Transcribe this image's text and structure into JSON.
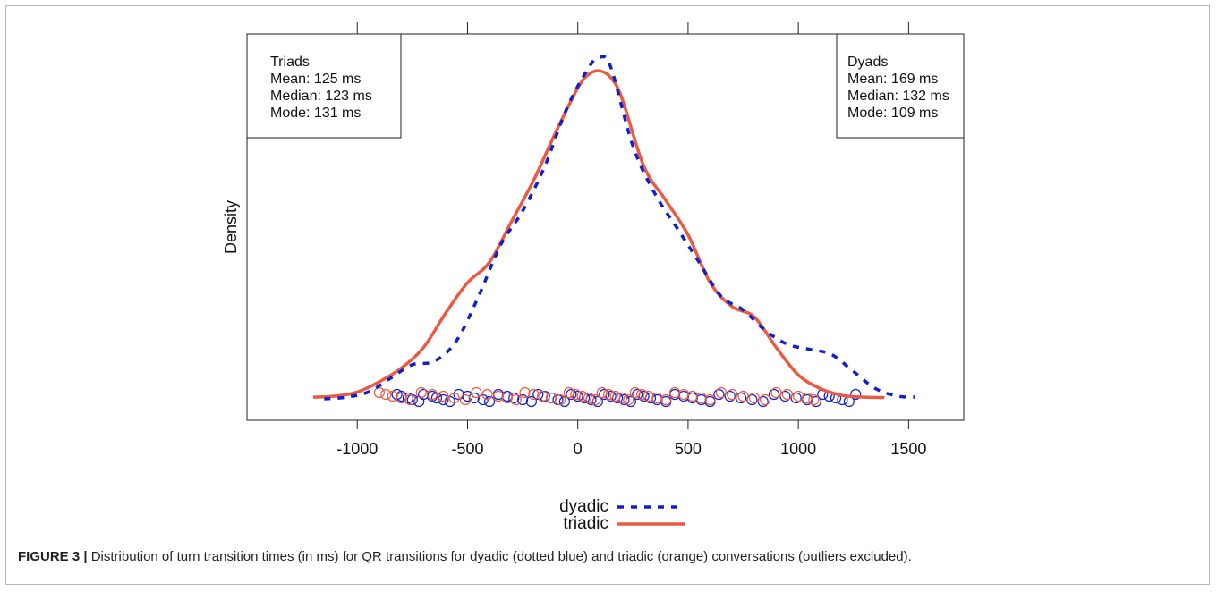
{
  "figure": {
    "label": "FIGURE 3 |",
    "caption": "Distribution of turn transition times (in ms) for QR transitions for dyadic (dotted blue) and triadic (orange) conversations (outliers excluded)."
  },
  "stats": {
    "triads": {
      "title": "Triads",
      "mean": "Mean: 125 ms",
      "median": "Median: 123 ms",
      "mode": "Mode:  131 ms"
    },
    "dyads": {
      "title": "Dyads",
      "mean": "Mean: 169 ms",
      "median": "Median: 132 ms",
      "mode": "Mode:  109 ms"
    }
  },
  "chart_data": {
    "type": "line",
    "title": "",
    "xlabel": "",
    "ylabel": "Density",
    "xlim": [
      -1500,
      1750
    ],
    "ylim": [
      0,
      1.0
    ],
    "xticks": [
      -1000,
      -500,
      0,
      500,
      1000,
      1500
    ],
    "xtick_labels": [
      "-1000",
      "-500",
      "0",
      "500",
      "1000",
      "1500"
    ],
    "top_ticks": [
      -1000,
      -500,
      0,
      500,
      1000,
      1500
    ],
    "grid": false,
    "legend_position": "bottom-center",
    "series": [
      {
        "name": "dyadic",
        "color": "#0f1fd0",
        "style": "dotted",
        "x": [
          -1150,
          -1050,
          -950,
          -850,
          -750,
          -650,
          -550,
          -450,
          -350,
          -250,
          -150,
          -50,
          50,
          100,
          150,
          250,
          350,
          450,
          550,
          650,
          750,
          850,
          950,
          1050,
          1150,
          1250,
          1350,
          1450,
          1530
        ],
        "y": [
          0,
          0.005,
          0.02,
          0.06,
          0.1,
          0.11,
          0.17,
          0.3,
          0.45,
          0.55,
          0.68,
          0.85,
          0.97,
          1.0,
          0.97,
          0.74,
          0.6,
          0.5,
          0.4,
          0.3,
          0.26,
          0.2,
          0.16,
          0.145,
          0.13,
          0.08,
          0.03,
          0.008,
          0.005
        ]
      },
      {
        "name": "triadic",
        "color": "#ea5a40",
        "style": "solid",
        "x": [
          -1200,
          -1100,
          -1000,
          -900,
          -800,
          -700,
          -600,
          -500,
          -400,
          -300,
          -200,
          -100,
          0,
          50,
          100,
          150,
          200,
          300,
          400,
          500,
          600,
          700,
          800,
          900,
          1000,
          1100,
          1200,
          1300,
          1390
        ],
        "y": [
          0.005,
          0.008,
          0.02,
          0.05,
          0.09,
          0.15,
          0.25,
          0.34,
          0.4,
          0.52,
          0.64,
          0.78,
          0.91,
          0.95,
          0.96,
          0.94,
          0.88,
          0.68,
          0.58,
          0.48,
          0.34,
          0.27,
          0.24,
          0.15,
          0.07,
          0.03,
          0.01,
          0.005,
          0.004
        ]
      }
    ],
    "rug": {
      "dyadic": [
        -820,
        -800,
        -770,
        -750,
        -720,
        -700,
        -660,
        -640,
        -610,
        -580,
        -540,
        -500,
        -470,
        -430,
        -400,
        -360,
        -320,
        -290,
        -250,
        -210,
        -180,
        -150,
        -120,
        -90,
        -60,
        -30,
        0,
        30,
        60,
        90,
        120,
        150,
        180,
        210,
        240,
        270,
        300,
        330,
        360,
        400,
        440,
        480,
        520,
        560,
        600,
        640,
        690,
        740,
        790,
        840,
        890,
        940,
        990,
        1040,
        1080,
        1110,
        1140,
        1170,
        1200,
        1230,
        1260
      ],
      "triadic": [
        -900,
        -870,
        -840,
        -800,
        -760,
        -710,
        -660,
        -610,
        -560,
        -510,
        -460,
        -410,
        -360,
        -320,
        -280,
        -240,
        -200,
        -160,
        -120,
        -80,
        -40,
        -10,
        20,
        50,
        80,
        110,
        140,
        170,
        200,
        230,
        260,
        290,
        320,
        360,
        400,
        440,
        480,
        520,
        560,
        600,
        650,
        700,
        750,
        800,
        850,
        900,
        950,
        1000,
        1040,
        1070
      ]
    }
  }
}
